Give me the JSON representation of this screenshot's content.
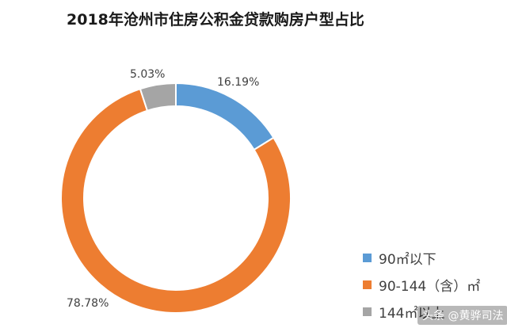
{
  "chart_data": {
    "type": "pie",
    "title": "2018年沧州市住房公积金贷款购房户型占比",
    "donut": true,
    "categories": [
      "90㎡以下",
      "90-144（含）㎡",
      "144㎡以上"
    ],
    "values": [
      16.19,
      78.78,
      5.03
    ],
    "labels": [
      "16.19%",
      "78.78%",
      "5.03%"
    ],
    "colors": [
      "#5B9BD5",
      "#ED7D31",
      "#A5A5A5"
    ],
    "legend_position": "bottom-right"
  },
  "watermark": "头条 @黄骅司法"
}
